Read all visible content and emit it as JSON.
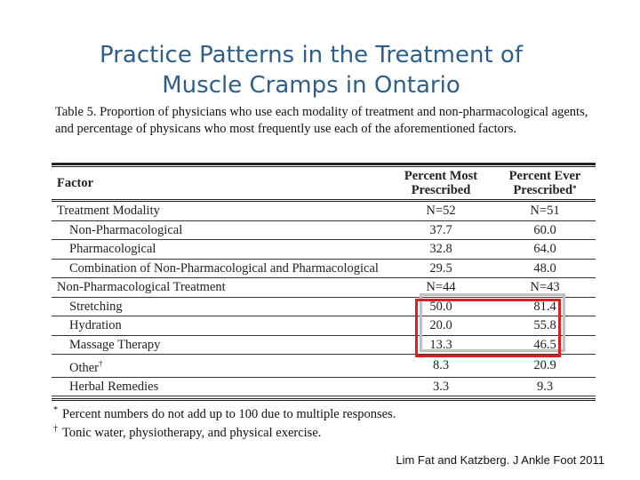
{
  "slide": {
    "title_line1": "Practice Patterns in the Treatment of",
    "title_line2": "Muscle Cramps in Ontario",
    "title_color": "#2e5f8a"
  },
  "table": {
    "caption": "Table 5. Proportion of physicians who use each modality of treatment and non-pharmacological agents, and percentage of physicans who most frequently use each of the aforementioned factors.",
    "headers": {
      "factor": "Factor",
      "most_line1": "Percent Most",
      "most_line2": "Prescribed",
      "ever_line1": "Percent Ever",
      "ever_line2": "Prescribed",
      "ever_mark": "*"
    },
    "rows": [
      {
        "factor": "Treatment Modality",
        "mark": "",
        "most": "N=52",
        "ever": "N=51",
        "indent": false
      },
      {
        "factor": "Non-Pharmacological",
        "mark": "",
        "most": "37.7",
        "ever": "60.0",
        "indent": true
      },
      {
        "factor": "Pharmacological",
        "mark": "",
        "most": "32.8",
        "ever": "64.0",
        "indent": true
      },
      {
        "factor": "Combination of Non-Pharmacological and Pharmacological",
        "mark": "",
        "most": "29.5",
        "ever": "48.0",
        "indent": true
      },
      {
        "factor": "Non-Pharmacological Treatment",
        "mark": "",
        "most": "N=44",
        "ever": "N=43",
        "indent": false
      },
      {
        "factor": "Stretching",
        "mark": "",
        "most": "50.0",
        "ever": "81.4",
        "indent": true
      },
      {
        "factor": "Hydration",
        "mark": "",
        "most": "20.0",
        "ever": "55.8",
        "indent": true
      },
      {
        "factor": "Massage Therapy",
        "mark": "",
        "most": "13.3",
        "ever": "46.5",
        "indent": true
      },
      {
        "factor": "Other",
        "mark": "†",
        "most": "8.3",
        "ever": "20.9",
        "indent": true
      },
      {
        "factor": "Herbal Remedies",
        "mark": "",
        "most": "3.3",
        "ever": "9.3",
        "indent": true
      }
    ],
    "highlight_color": "#e01e1e",
    "shadow_color": "#c0c0c0"
  },
  "footnotes": [
    {
      "mark": "*",
      "text": "Percent numbers do not add up to 100 due to multiple responses."
    },
    {
      "mark": "†",
      "text": "Tonic water, physiotherapy, and physical exercise."
    }
  ],
  "citation": "Lim Fat and Katzberg. J Ankle Foot 2011"
}
